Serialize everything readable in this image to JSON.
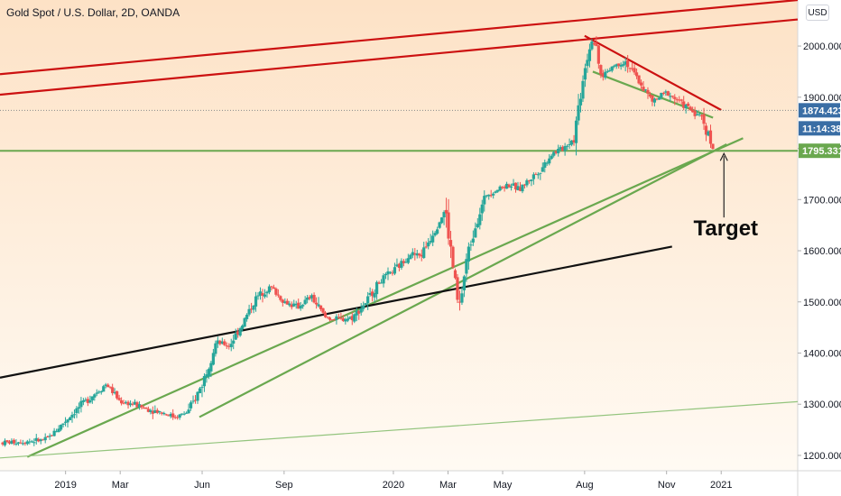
{
  "header": {
    "symbol_title": "Gold Spot / U.S. Dollar, 2D, OANDA",
    "currency_label": "USD"
  },
  "colors": {
    "background_top": "#fde2c6",
    "background_bottom": "#fffaf3",
    "bullish": "#26a69a",
    "bearish": "#ef5350",
    "trend_red": "#cc1111",
    "trend_green": "#6aa84f",
    "trend_black": "#111111",
    "support_tag": "#6aa84f",
    "last_price_tag": "#3a6ea5",
    "countdown_tag": "#3a6ea5"
  },
  "chart_data": {
    "type": "candlestick",
    "title": "Gold Spot / U.S. Dollar, 2D, OANDA",
    "y_axis": {
      "ticks": [
        1200,
        1300,
        1400,
        1500,
        1600,
        1700,
        1800,
        1900,
        2000
      ],
      "tick_labels": [
        "1200.000",
        "1300.000",
        "1400.000",
        "1500.000",
        "1600.000",
        "1700.000",
        "1800.000",
        "1900.000",
        "2000.000"
      ],
      "ylim": [
        1170,
        2090
      ]
    },
    "x_axis": {
      "tick_labels": [
        "2019",
        "Mar",
        "Jun",
        "Sep",
        "2020",
        "Mar",
        "May",
        "Aug",
        "Nov",
        "2021"
      ],
      "tick_positions": [
        1.0,
        3.0,
        6.0,
        9.0,
        13.0,
        15.0,
        17.0,
        20.0,
        23.0,
        25.0
      ],
      "xlim": [
        -1.4,
        27.8
      ],
      "unit": "month index (Jan 2019 = 1)"
    },
    "price_path": [
      [
        -1.3,
        1225
      ],
      [
        0.3,
        1230
      ],
      [
        1.5,
        1295
      ],
      [
        2.0,
        1318
      ],
      [
        2.5,
        1340
      ],
      [
        3.0,
        1305
      ],
      [
        3.5,
        1300
      ],
      [
        4.0,
        1290
      ],
      [
        4.5,
        1285
      ],
      [
        5.0,
        1275
      ],
      [
        5.5,
        1285
      ],
      [
        6.0,
        1340
      ],
      [
        6.5,
        1420
      ],
      [
        7.0,
        1415
      ],
      [
        7.5,
        1460
      ],
      [
        8.0,
        1510
      ],
      [
        8.5,
        1530
      ],
      [
        9.0,
        1500
      ],
      [
        9.5,
        1490
      ],
      [
        10.0,
        1510
      ],
      [
        10.5,
        1470
      ],
      [
        11.0,
        1465
      ],
      [
        11.5,
        1470
      ],
      [
        12.0,
        1500
      ],
      [
        12.5,
        1540
      ],
      [
        13.0,
        1560
      ],
      [
        13.3,
        1575
      ],
      [
        13.6,
        1595
      ],
      [
        14.0,
        1590
      ],
      [
        14.5,
        1640
      ],
      [
        14.9,
        1680
      ],
      [
        15.2,
        1560
      ],
      [
        15.4,
        1480
      ],
      [
        15.7,
        1590
      ],
      [
        16.0,
        1650
      ],
      [
        16.4,
        1710
      ],
      [
        16.8,
        1720
      ],
      [
        17.2,
        1730
      ],
      [
        17.6,
        1720
      ],
      [
        18.0,
        1740
      ],
      [
        18.4,
        1760
      ],
      [
        18.8,
        1790
      ],
      [
        19.2,
        1800
      ],
      [
        19.6,
        1820
      ],
      [
        20.0,
        1960
      ],
      [
        20.3,
        2020
      ],
      [
        20.6,
        1940
      ],
      [
        21.0,
        1960
      ],
      [
        21.5,
        1970
      ],
      [
        22.0,
        1930
      ],
      [
        22.5,
        1890
      ],
      [
        23.0,
        1910
      ],
      [
        23.5,
        1890
      ],
      [
        24.0,
        1870
      ],
      [
        24.3,
        1860
      ],
      [
        24.7,
        1800
      ]
    ],
    "trendlines": [
      {
        "color": "red",
        "points": [
          [
            -1.4,
            1945
          ],
          [
            27.8,
            2090
          ]
        ]
      },
      {
        "color": "red",
        "points": [
          [
            -1.4,
            1905
          ],
          [
            27.8,
            2052
          ]
        ]
      },
      {
        "color": "red",
        "points": [
          [
            20.0,
            2020
          ],
          [
            25.0,
            1875
          ]
        ]
      },
      {
        "color": "green",
        "points": [
          [
            20.3,
            1950
          ],
          [
            24.7,
            1860
          ]
        ]
      },
      {
        "color": "green",
        "points": [
          [
            -0.4,
            1197
          ],
          [
            25.8,
            1820
          ]
        ]
      },
      {
        "color": "green",
        "points": [
          [
            5.9,
            1275
          ],
          [
            25.2,
            1808
          ]
        ]
      },
      {
        "color": "green-thin",
        "points": [
          [
            -1.4,
            1195
          ],
          [
            27.8,
            1305
          ]
        ]
      },
      {
        "color": "black",
        "points": [
          [
            -1.4,
            1352
          ],
          [
            23.2,
            1608
          ]
        ]
      },
      {
        "color": "green-horizontal",
        "points": [
          [
            -1.4,
            1795.331
          ],
          [
            27.8,
            1795.331
          ]
        ]
      }
    ],
    "annotation": {
      "text": "Target",
      "arrow_from": [
        25.1,
        1665
      ],
      "arrow_to": [
        25.1,
        1790
      ]
    },
    "price_tags": {
      "last_price": "1874.423",
      "countdown": "11:14:38",
      "support_level": "1795.331",
      "support_value": 1795.331,
      "last_value": 1874.423
    }
  }
}
